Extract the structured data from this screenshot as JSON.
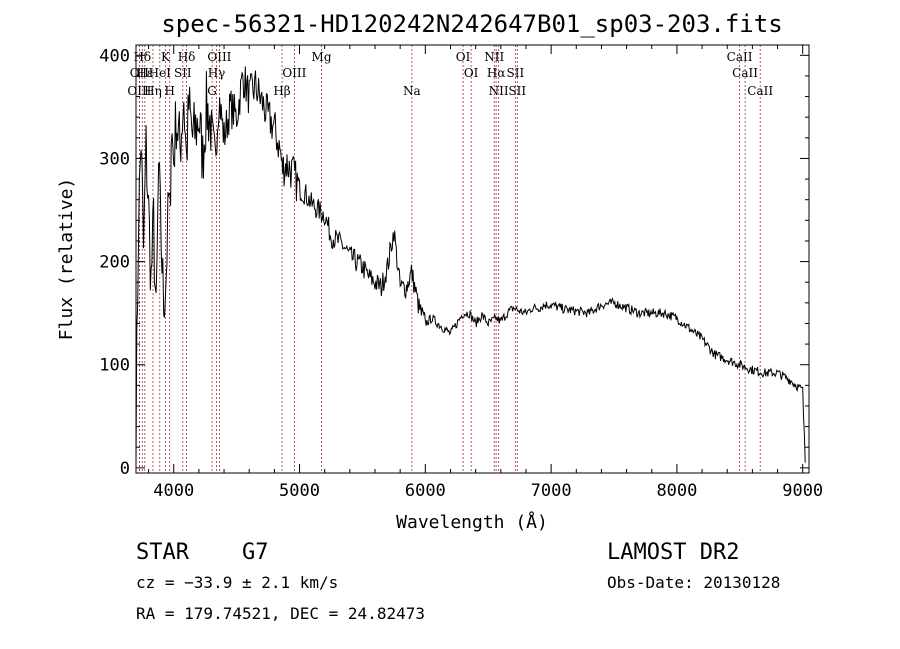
{
  "chart_data": {
    "type": "line",
    "title": "spec-56321-HD120242N242647B01_sp03-203.fits",
    "xlabel": "Wavelength (Å)",
    "ylabel": "Flux (relative)",
    "xlim": [
      3700,
      9050
    ],
    "ylim": [
      -5,
      410
    ],
    "x_ticks": [
      4000,
      5000,
      6000,
      7000,
      8000,
      9000
    ],
    "y_ticks": [
      0,
      100,
      200,
      300,
      400
    ],
    "grid": false,
    "series": [
      {
        "x": [
          3700,
          3720,
          3740,
          3760,
          3780,
          3800,
          3820,
          3840,
          3860,
          3880,
          3900,
          3920,
          3940,
          3960,
          3970,
          3980,
          4000,
          4020,
          4050,
          4080,
          4100,
          4120,
          4150,
          4180,
          4200,
          4230,
          4260,
          4300,
          4330,
          4360,
          4400,
          4450,
          4500,
          4550,
          4600,
          4650,
          4700,
          4750,
          4800,
          4850,
          4861,
          4900,
          4950,
          5000,
          5050,
          5100,
          5150,
          5200,
          5250,
          5300,
          5350,
          5400,
          5450,
          5500,
          5550,
          5600,
          5650,
          5700,
          5750,
          5800,
          5850,
          5890,
          5950,
          6000,
          6050,
          6100,
          6150,
          6200,
          6250,
          6300,
          6350,
          6400,
          6450,
          6500,
          6563,
          6600,
          6650,
          6700,
          6750,
          6800,
          6850,
          6900,
          6950,
          7000,
          7100,
          7200,
          7300,
          7400,
          7500,
          7600,
          7700,
          7800,
          7900,
          8000,
          8100,
          8200,
          8300,
          8400,
          8500,
          8600,
          8700,
          8800,
          8900,
          8950,
          9000,
          9020
        ],
        "y": [
          40,
          240,
          320,
          210,
          310,
          250,
          180,
          240,
          140,
          290,
          220,
          160,
          190,
          260,
          240,
          330,
          300,
          340,
          310,
          360,
          300,
          350,
          320,
          330,
          340,
          300,
          350,
          330,
          300,
          360,
          320,
          350,
          340,
          380,
          360,
          370,
          355,
          340,
          330,
          305,
          290,
          295,
          285,
          270,
          265,
          255,
          250,
          245,
          225,
          220,
          215,
          205,
          200,
          195,
          185,
          180,
          175,
          195,
          230,
          175,
          175,
          190,
          155,
          140,
          145,
          140,
          135,
          130,
          140,
          150,
          150,
          140,
          148,
          140,
          145,
          142,
          150,
          155,
          152,
          150,
          155,
          155,
          158,
          158,
          154,
          152,
          150,
          158,
          160,
          155,
          150,
          150,
          150,
          145,
          135,
          125,
          110,
          105,
          100,
          95,
          92,
          92,
          85,
          80,
          75,
          5
        ]
      }
    ],
    "spectral_lines": [
      {
        "label": "Hδ",
        "x": 3750,
        "row": 1
      },
      {
        "label": "OII",
        "x": 3727,
        "row": 2
      },
      {
        "label": "OIII",
        "x": 3727,
        "row": 3
      },
      {
        "label": "Hε",
        "x": 3770,
        "row": 2
      },
      {
        "label": "Hη",
        "x": 3835,
        "row": 3
      },
      {
        "label": "K",
        "x": 3934,
        "row": 1
      },
      {
        "label": "HeI",
        "x": 3889,
        "row": 2
      },
      {
        "label": "H",
        "x": 3968,
        "row": 3
      },
      {
        "label": "SII",
        "x": 4072,
        "row": 2
      },
      {
        "label": "Hδ",
        "x": 4102,
        "row": 1
      },
      {
        "label": "OIII",
        "x": 4363,
        "row": 1
      },
      {
        "label": "Hγ",
        "x": 4340,
        "row": 2
      },
      {
        "label": "G",
        "x": 4305,
        "row": 3
      },
      {
        "label": "OIII",
        "x": 4959,
        "row": 2
      },
      {
        "label": "Hβ",
        "x": 4861,
        "row": 3
      },
      {
        "label": "Mg",
        "x": 5175,
        "row": 1
      },
      {
        "label": "Na",
        "x": 5893,
        "row": 3
      },
      {
        "label": "OI",
        "x": 6300,
        "row": 1
      },
      {
        "label": "OI",
        "x": 6364,
        "row": 2
      },
      {
        "label": "NII",
        "x": 6548,
        "row": 1
      },
      {
        "label": "Hα",
        "x": 6563,
        "row": 2
      },
      {
        "label": "NII",
        "x": 6583,
        "row": 3
      },
      {
        "label": "SII",
        "x": 6716,
        "row": 2
      },
      {
        "label": "SII",
        "x": 6731,
        "row": 3
      },
      {
        "label": "CaII",
        "x": 8498,
        "row": 1
      },
      {
        "label": "CaII",
        "x": 8542,
        "row": 2
      },
      {
        "label": "CaII",
        "x": 8662,
        "row": 3
      }
    ]
  },
  "info": {
    "object_class": "STAR",
    "subclass": "G7",
    "survey": "LAMOST DR2",
    "redshift_line": "cz = −33.9 ± 2.1 km/s",
    "obs_date_line": "Obs-Date: 20130128",
    "coords_line": "RA = 179.74521, DEC =  24.82473"
  }
}
